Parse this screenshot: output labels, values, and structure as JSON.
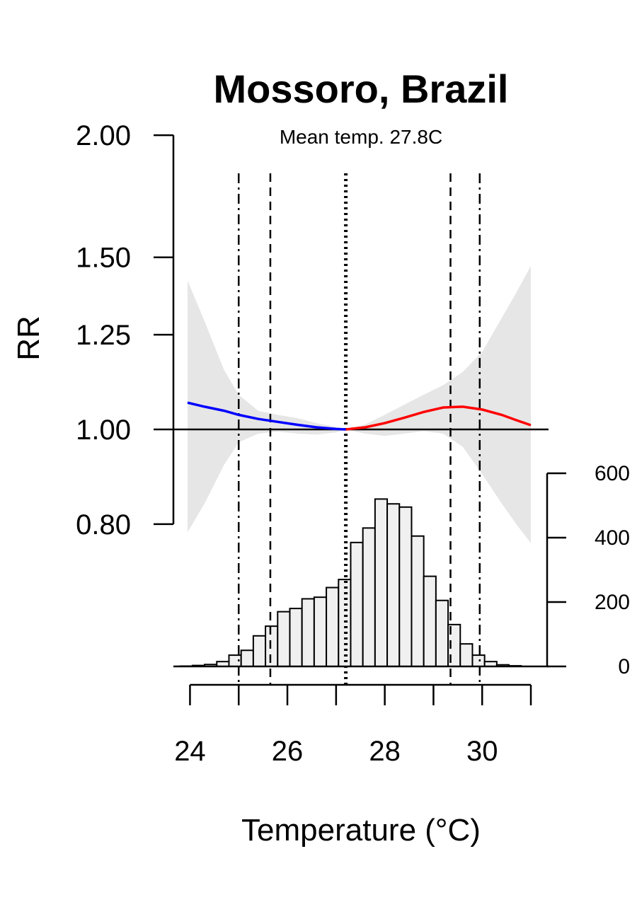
{
  "chart_data": {
    "type": "line",
    "title": "Mossoro, Brazil",
    "subtitle": "Mean temp. 27.8C",
    "ylabel": "RR",
    "xlabel": "Temperature (°C)",
    "xlim": [
      23.95,
      31.0
    ],
    "x_ticks": [
      24,
      26,
      28,
      30
    ],
    "x_minor_ticks": [
      24,
      25,
      26,
      27,
      28,
      29,
      30,
      31
    ],
    "rr_ylim": [
      0.8,
      2.0
    ],
    "rr_scale": "log",
    "rr_ticks": [
      "2.00",
      "1.50",
      "1.25",
      "1.00",
      "0.80"
    ],
    "reference_line_rr": 1.0,
    "mmt": 27.2,
    "vlines": [
      {
        "x": 25.0,
        "style": "dashdot"
      },
      {
        "x": 25.65,
        "style": "dashed"
      },
      {
        "x": 27.2,
        "style": "dotted"
      },
      {
        "x": 29.35,
        "style": "dashed"
      },
      {
        "x": 29.95,
        "style": "dashdot"
      }
    ],
    "series": [
      {
        "color": "#0000ff",
        "x": [
          23.95,
          24.3,
          24.7,
          25.0,
          25.4,
          25.8,
          26.2,
          26.6,
          27.0,
          27.2
        ],
        "y": [
          1.065,
          1.055,
          1.045,
          1.035,
          1.025,
          1.018,
          1.011,
          1.005,
          1.001,
          1.0
        ]
      },
      {
        "color": "#ff0000",
        "x": [
          27.2,
          27.6,
          28.0,
          28.4,
          28.8,
          29.2,
          29.6,
          30.0,
          30.4,
          30.7,
          31.0
        ],
        "y": [
          1.0,
          1.005,
          1.015,
          1.028,
          1.042,
          1.053,
          1.055,
          1.048,
          1.035,
          1.022,
          1.01
        ]
      }
    ],
    "ci_band": {
      "x": [
        23.95,
        24.3,
        24.7,
        25.0,
        25.4,
        25.8,
        26.2,
        26.6,
        27.0,
        27.2,
        27.6,
        28.0,
        28.4,
        28.8,
        29.2,
        29.6,
        30.0,
        30.4,
        30.7,
        31.0
      ],
      "lower": [
        0.785,
        0.84,
        0.92,
        0.97,
        0.99,
        0.995,
        0.99,
        0.988,
        0.993,
        1.0,
        0.99,
        0.985,
        0.99,
        0.996,
        0.99,
        0.96,
        0.9,
        0.84,
        0.8,
        0.765
      ],
      "upper": [
        1.42,
        1.29,
        1.15,
        1.085,
        1.045,
        1.035,
        1.027,
        1.015,
        1.006,
        1.0,
        1.012,
        1.035,
        1.06,
        1.085,
        1.11,
        1.145,
        1.2,
        1.3,
        1.38,
        1.47
      ]
    },
    "histogram": {
      "count_ticks": [
        "0",
        "200",
        "400",
        "600"
      ],
      "count_ylim": [
        0,
        600
      ],
      "bin_start": 23.8,
      "bin_width": 0.25,
      "counts": [
        1,
        3,
        6,
        15,
        35,
        50,
        95,
        125,
        170,
        180,
        210,
        215,
        245,
        270,
        385,
        430,
        520,
        505,
        495,
        405,
        280,
        205,
        130,
        70,
        35,
        15,
        5,
        2
      ]
    }
  }
}
